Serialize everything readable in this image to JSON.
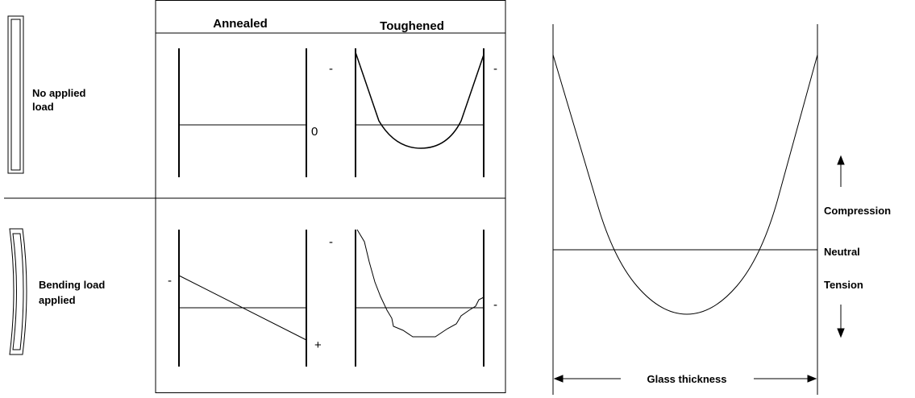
{
  "header": {
    "columns": [
      "Annealed",
      "Toughened"
    ]
  },
  "rows": [
    {
      "label": [
        "No applied",
        "load"
      ],
      "annealed_signs": [
        "-",
        "0"
      ],
      "toughened_signs": [
        "-"
      ]
    },
    {
      "label": [
        "Bending  load",
        "applied"
      ],
      "annealed_signs": [
        "-",
        "-",
        "+"
      ],
      "toughened_signs": [
        "-"
      ]
    }
  ],
  "profile": {
    "labels": [
      "Compression",
      "Neutral",
      "Tension"
    ],
    "thickness_label": "Glass thickness"
  }
}
